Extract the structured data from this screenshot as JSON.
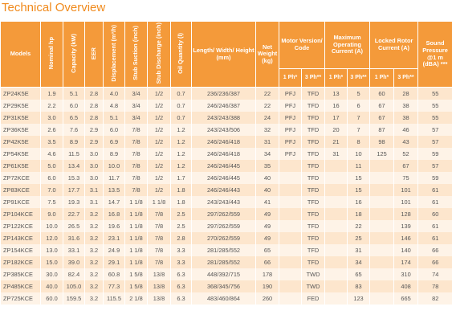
{
  "title": "Technical Overview",
  "header": {
    "columns": [
      "Models",
      "Nominal hp",
      "Capacity (kW)",
      "EER",
      "Displacement (m³/h)",
      "Stub Suction (inch)",
      "Stub Discharge (inch)",
      "Oil Quantity (l)",
      "Length/ Width/ Height (mm)",
      "Net Weight (kg)",
      "Motor Version/ Code",
      "Maximum Operating Current (A)",
      "Locked Rotor Current (A)",
      "Sound Pressure @1 m (dBA) ***"
    ],
    "sub": [
      "1 Ph*",
      "3 Ph**",
      "1 Ph*",
      "3 Ph**",
      "1 Ph*",
      "3 Ph**"
    ]
  },
  "table": {
    "rows": [
      [
        "ZP24K5E",
        "1.9",
        "5.1",
        "2.8",
        "4.0",
        "3/4",
        "1/2",
        "0.7",
        "236/236/387",
        "22",
        "PFJ",
        "TFD",
        "13",
        "5",
        "60",
        "28",
        "55"
      ],
      [
        "ZP29K5E",
        "2.2",
        "6.0",
        "2.8",
        "4.8",
        "3/4",
        "1/2",
        "0.7",
        "246/246/387",
        "22",
        "PFJ",
        "TFD",
        "16",
        "6",
        "67",
        "38",
        "55"
      ],
      [
        "ZP31K5E",
        "3.0",
        "6.5",
        "2.8",
        "5.1",
        "3/4",
        "1/2",
        "0.7",
        "243/243/388",
        "24",
        "PFJ",
        "TFD",
        "17",
        "7",
        "67",
        "38",
        "55"
      ],
      [
        "ZP36K5E",
        "2.6",
        "7.6",
        "2.9",
        "6.0",
        "7/8",
        "1/2",
        "1.2",
        "243/243/506",
        "32",
        "PFJ",
        "TFD",
        "20",
        "7",
        "87",
        "46",
        "57"
      ],
      [
        "ZP42K5E",
        "3.5",
        "8.9",
        "2.9",
        "6.9",
        "7/8",
        "1/2",
        "1.2",
        "246/246/418",
        "31",
        "PFJ",
        "TFD",
        "21",
        "8",
        "98",
        "43",
        "57"
      ],
      [
        "ZP54K5E",
        "4.6",
        "11.5",
        "3.0",
        "8.9",
        "7/8",
        "1/2",
        "1.2",
        "246/246/418",
        "34",
        "PFJ",
        "TFD",
        "31",
        "10",
        "125",
        "52",
        "59"
      ],
      [
        "ZP61K5E",
        "5.0",
        "13.4",
        "3.0",
        "10.0",
        "7/8",
        "1/2",
        "1.2",
        "246/246/445",
        "35",
        null,
        "TFD",
        null,
        "11",
        null,
        "67",
        "57"
      ],
      [
        "ZP72KCE",
        "6.0",
        "15.3",
        "3.0",
        "11.7",
        "7/8",
        "1/2",
        "1.7",
        "246/246/445",
        "40",
        null,
        "TFD",
        null,
        "15",
        null,
        "75",
        "59"
      ],
      [
        "ZP83KCE",
        "7.0",
        "17.7",
        "3.1",
        "13.5",
        "7/8",
        "1/2",
        "1.8",
        "246/246/443",
        "40",
        null,
        "TFD",
        null,
        "15",
        null,
        "101",
        "61"
      ],
      [
        "ZP91KCE",
        "7.5",
        "19.3",
        "3.1",
        "14.7",
        "1 1/8",
        "1 1/8",
        "1.8",
        "243/243/443",
        "41",
        null,
        "TFD",
        null,
        "16",
        null,
        "101",
        "61"
      ],
      [
        "ZP104KCE",
        "9.0",
        "22.7",
        "3.2",
        "16.8",
        "1 1/8",
        "7/8",
        "2.5",
        "297/262/559",
        "49",
        null,
        "TFD",
        null,
        "18",
        null,
        "128",
        "60"
      ],
      [
        "ZP122KCE",
        "10.0",
        "26.5",
        "3.2",
        "19.6",
        "1 1/8",
        "7/8",
        "2.5",
        "297/262/559",
        "49",
        null,
        "TFD",
        null,
        "22",
        null,
        "139",
        "61"
      ],
      [
        "ZP143KCE",
        "12.0",
        "31.6",
        "3.2",
        "23.1",
        "1 1/8",
        "7/8",
        "2.8",
        "270/262/559",
        "49",
        null,
        "TFD",
        null,
        "25",
        null,
        "146",
        "61"
      ],
      [
        "ZP154KCE",
        "13.0",
        "33.1",
        "3.2",
        "24.9",
        "1 1/8",
        "7/8",
        "3.3",
        "281/285/552",
        "65",
        null,
        "TFD",
        null,
        "31",
        null,
        "140",
        "66"
      ],
      [
        "ZP182KCE",
        "15.0",
        "39.0",
        "3.2",
        "29.1",
        "1 1/8",
        "7/8",
        "3.3",
        "281/285/552",
        "66",
        null,
        "TFD",
        null,
        "34",
        null,
        "174",
        "66"
      ],
      [
        "ZP385KCE",
        "30.0",
        "82.4",
        "3.2",
        "60.8",
        "1 5/8",
        "13/8",
        "6.3",
        "448/392/715",
        "178",
        null,
        "TWD",
        null,
        "65",
        null,
        "310",
        "74"
      ],
      [
        "ZP485KCE",
        "40.0",
        "105.0",
        "3.2",
        "77.3",
        "1 5/8",
        "13/8",
        "6.3",
        "368/345/756",
        "190",
        null,
        "TWD",
        null,
        "83",
        null,
        "408",
        "78"
      ],
      [
        "ZP725KCE",
        "60.0",
        "159.5",
        "3.2",
        "115.5",
        "2 1/8",
        "13/8",
        "6.3",
        "483/460/864",
        "260",
        null,
        "FED",
        null,
        "123",
        null,
        "665",
        "82"
      ]
    ]
  }
}
